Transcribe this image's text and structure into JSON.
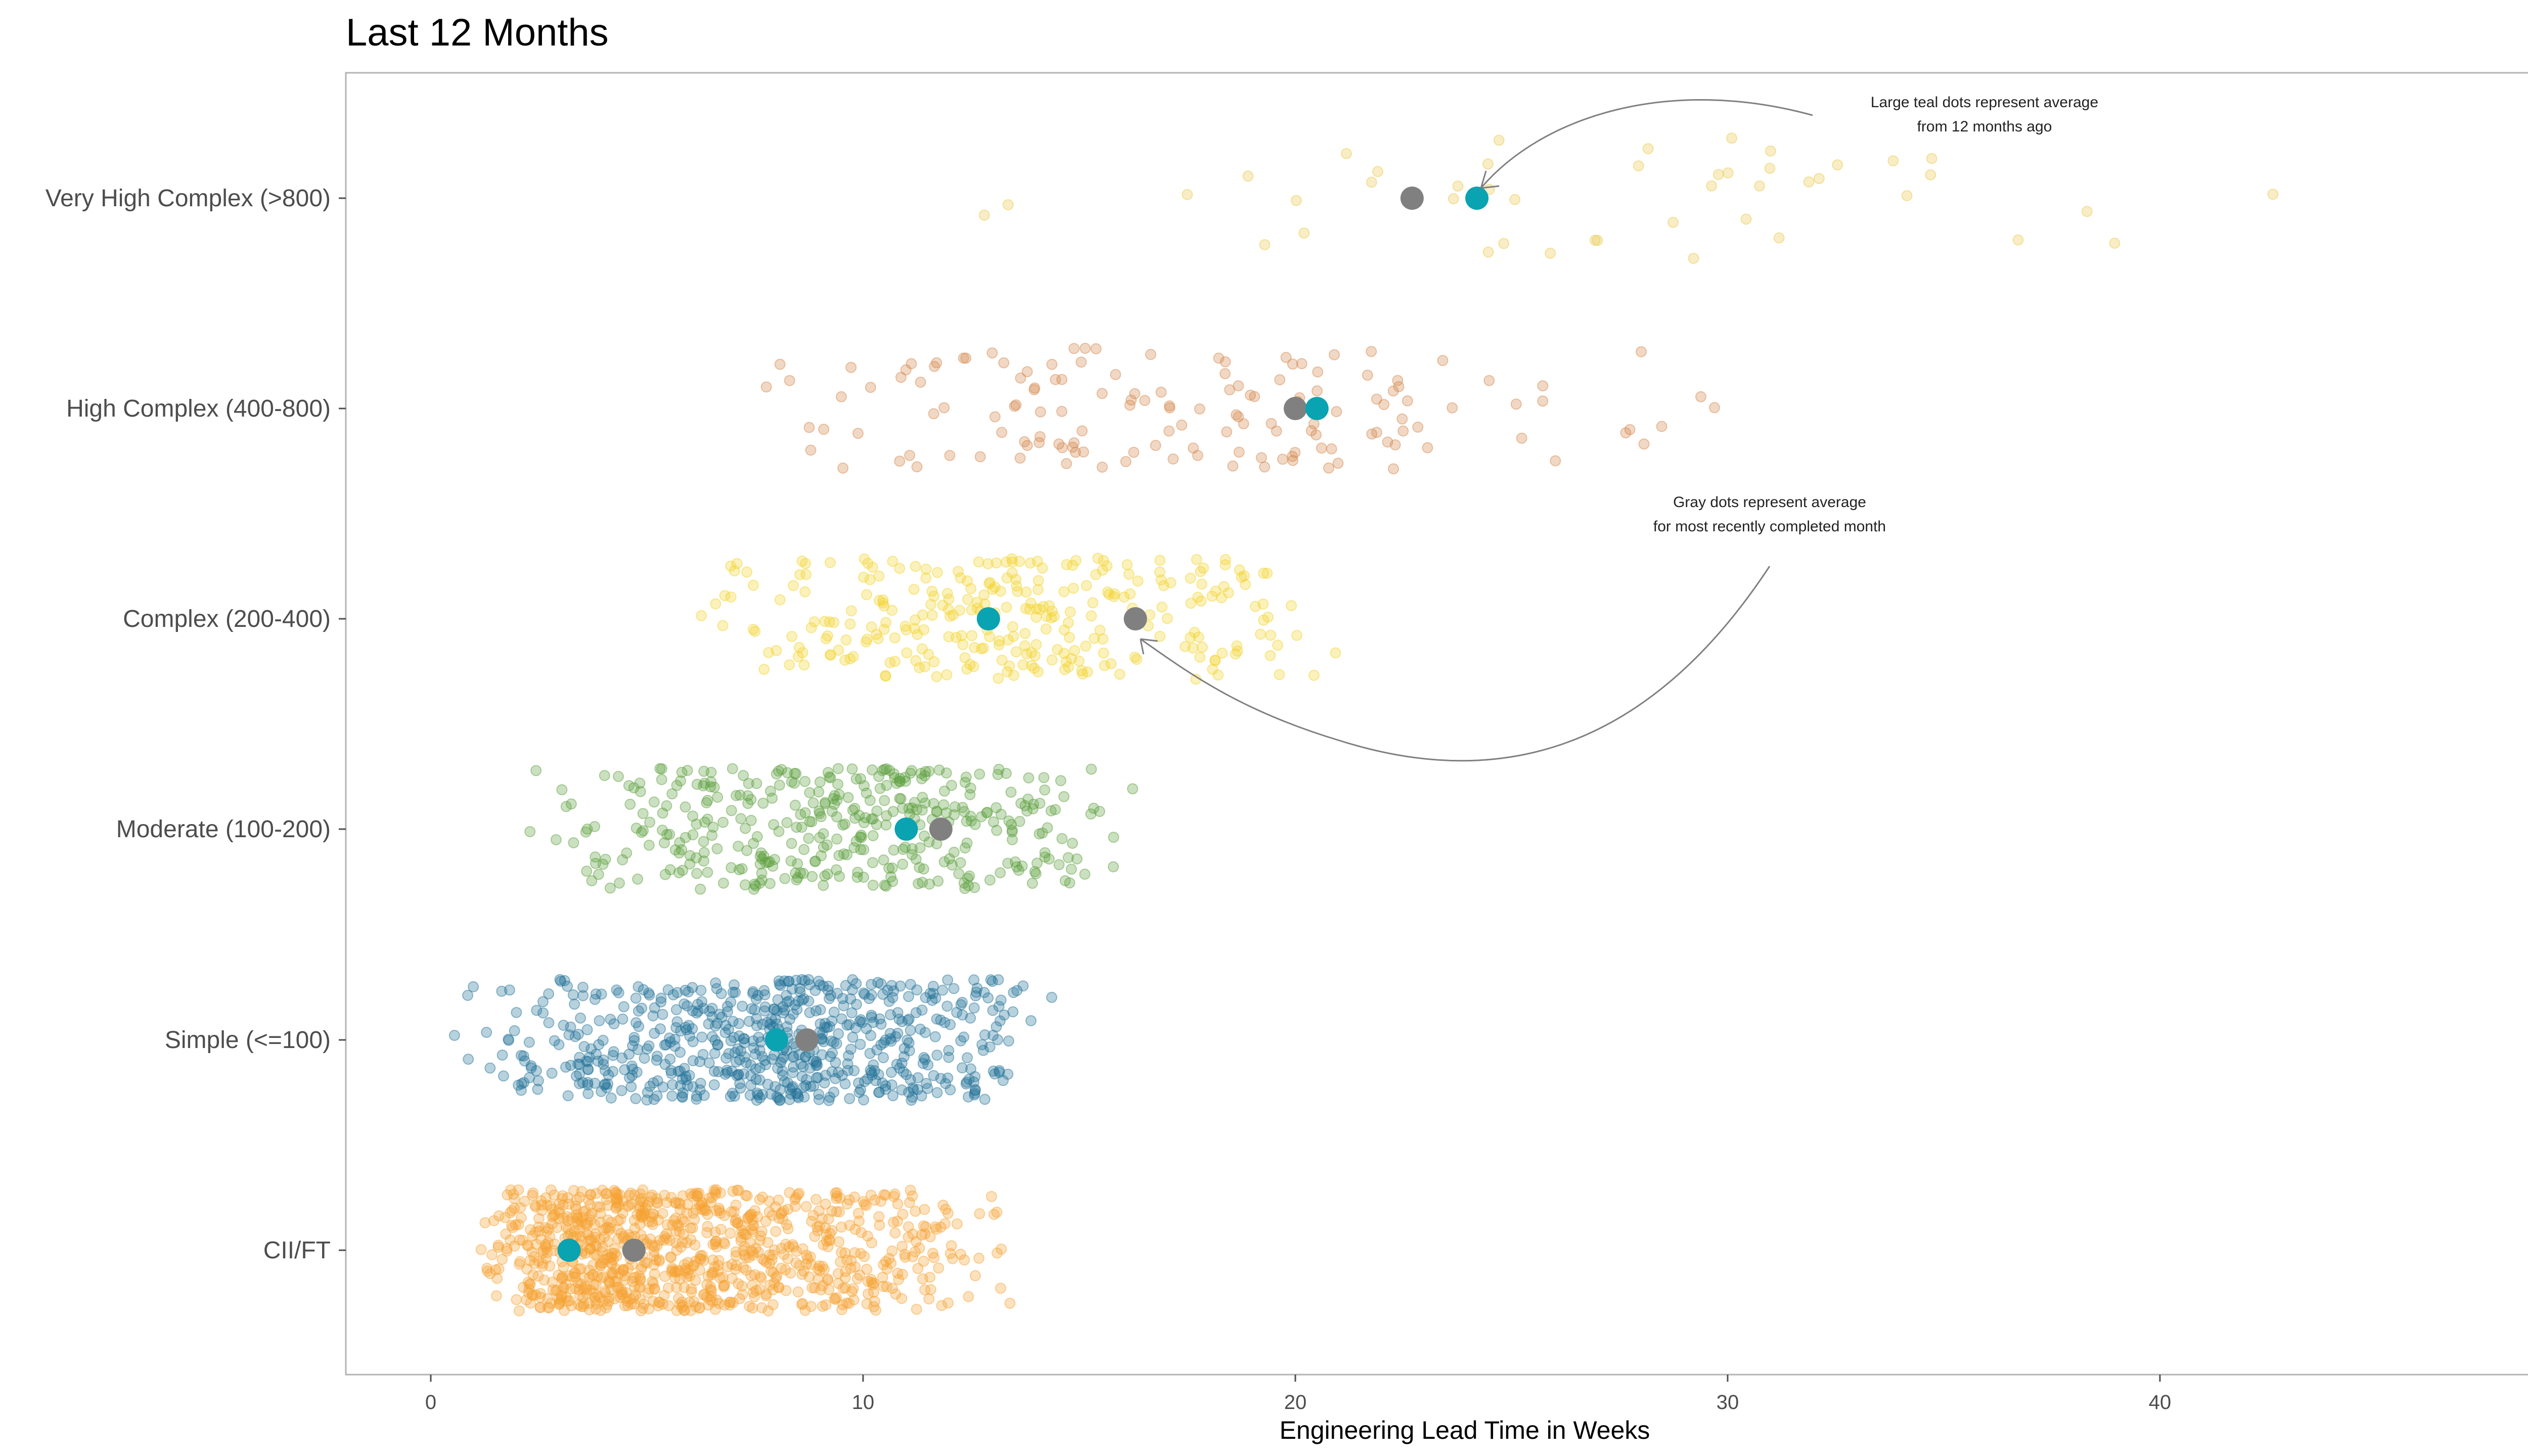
{
  "chart_data": {
    "type": "scatter",
    "title": "Last 12 Months",
    "xlabel": "Engineering Lead Time in Weeks",
    "ylabel": "",
    "xlim": [
      -2,
      49
    ],
    "xticks": [
      0,
      10,
      20,
      30,
      40
    ],
    "grid": false,
    "categories": [
      "Very High Complex (>800)",
      "High Complex (400-800)",
      "Complex (200-400)",
      "Moderate (100-200)",
      "Simple (<=100)",
      "CII/FT"
    ],
    "series": [
      {
        "category": "Very High Complex (>800)",
        "color": "#e8c84a",
        "count": 45,
        "min": 10.2,
        "max": 47.6,
        "mode": 23,
        "avg_12_months_ago": 24.2,
        "avg_recent_month": 22.7
      },
      {
        "category": "High Complex (400-800)",
        "color": "#d2854a",
        "count": 150,
        "min": 6.3,
        "max": 31,
        "mode": 16,
        "avg_12_months_ago": 20.5,
        "avg_recent_month": 20.0
      },
      {
        "category": "Complex (200-400)",
        "color": "#f2d22a",
        "count": 300,
        "min": 5.8,
        "max": 21.7,
        "mode": 12.5,
        "avg_12_months_ago": 12.9,
        "avg_recent_month": 16.3
      },
      {
        "category": "Moderate (100-200)",
        "color": "#5a9e3c",
        "count": 400,
        "min": 1.7,
        "max": 16.5,
        "mode": 10,
        "avg_12_months_ago": 11.0,
        "avg_recent_month": 11.8
      },
      {
        "category": "Simple (<=100)",
        "color": "#1f6f96",
        "count": 650,
        "min": 0.4,
        "max": 14.5,
        "mode": 8.5,
        "avg_12_months_ago": 8.0,
        "avg_recent_month": 8.7
      },
      {
        "category": "CII/FT",
        "color": "#f7a131",
        "count": 950,
        "min": 1,
        "max": 13.7,
        "mode": 3.5,
        "avg_12_months_ago": 3.2,
        "avg_recent_month": 4.7
      }
    ],
    "average_colors": {
      "avg_12_months_ago": "#0aa3b1",
      "avg_recent_month": "#808080"
    },
    "annotations": {
      "teal": [
        "Large teal dots represent average",
        "from 12 months ago"
      ],
      "gray": [
        "Gray dots represent average",
        "for most recently completed month"
      ]
    }
  }
}
